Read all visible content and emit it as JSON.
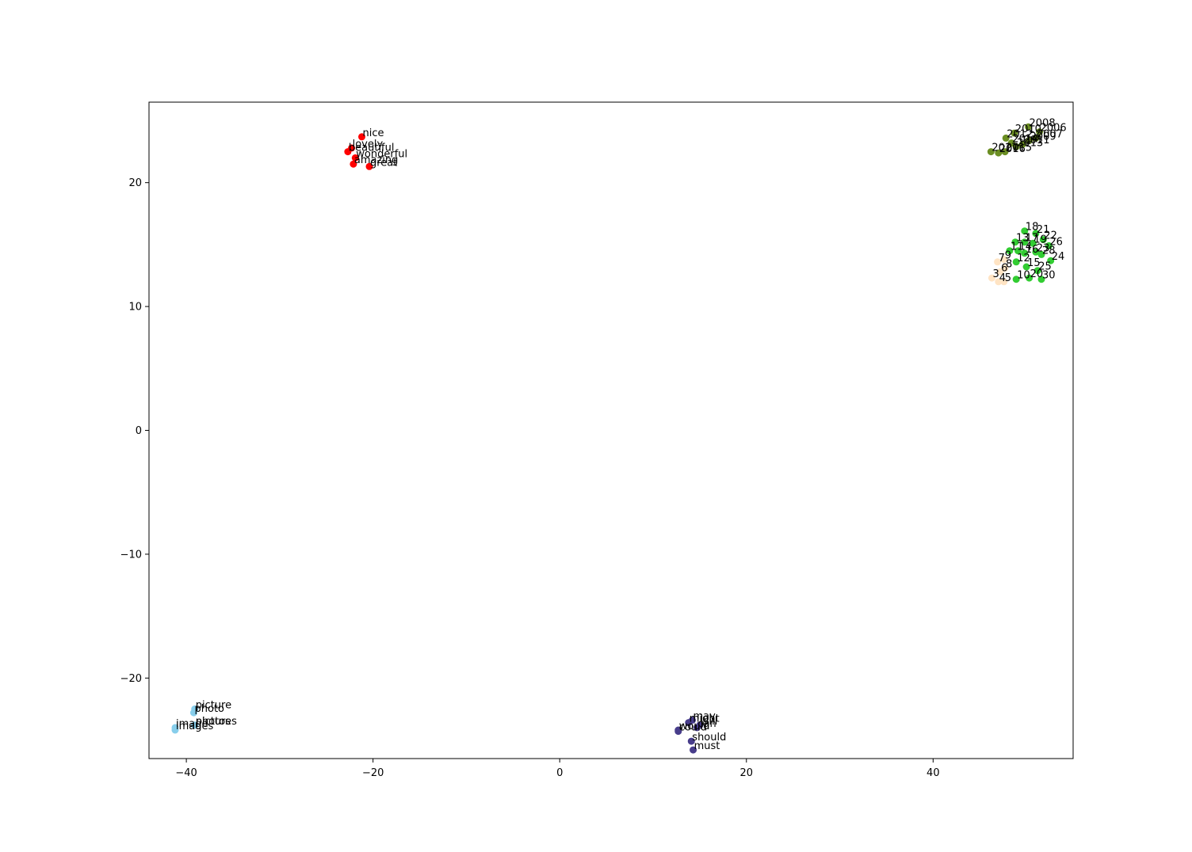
{
  "chart_data": {
    "type": "scatter",
    "title": "",
    "xlabel": "",
    "ylabel": "",
    "xlim": [
      -44,
      55
    ],
    "ylim": [
      -26.5,
      26.5
    ],
    "grid": false,
    "x_ticks": [
      -40,
      -20,
      0,
      20,
      40
    ],
    "y_ticks": [
      -20,
      -10,
      0,
      10,
      20
    ],
    "x_tick_labels": [
      "−40",
      "−20",
      "0",
      "20",
      "40"
    ],
    "y_tick_labels": [
      "−20",
      "−10",
      "0",
      "10",
      "20"
    ],
    "series": [
      {
        "color": "#ff0000",
        "points": [
          {
            "label": "nice",
            "x": -21.2,
            "y": 23.7
          },
          {
            "label": "lovely",
            "x": -22.3,
            "y": 22.8
          },
          {
            "label": "beautiful",
            "x": -22.7,
            "y": 22.5
          },
          {
            "label": "wonderful",
            "x": -21.9,
            "y": 22.0
          },
          {
            "label": "amazing",
            "x": -22.1,
            "y": 21.5
          },
          {
            "label": "great",
            "x": -20.4,
            "y": 21.3
          }
        ]
      },
      {
        "color": "#6b8e23",
        "points": [
          {
            "label": "2008",
            "x": 50.2,
            "y": 24.5
          },
          {
            "label": "2006",
            "x": 51.4,
            "y": 24.1
          },
          {
            "label": "2010",
            "x": 48.7,
            "y": 24.0
          },
          {
            "label": "2012",
            "x": 47.8,
            "y": 23.6
          },
          {
            "label": "2007",
            "x": 51.0,
            "y": 23.6
          },
          {
            "label": "2009",
            "x": 50.3,
            "y": 23.4
          },
          {
            "label": "2014",
            "x": 48.4,
            "y": 23.2
          },
          {
            "label": "2011",
            "x": 49.6,
            "y": 23.1
          },
          {
            "label": "2013",
            "x": 48.9,
            "y": 22.9
          },
          {
            "label": "2015",
            "x": 47.7,
            "y": 22.5
          },
          {
            "label": "2016",
            "x": 47.0,
            "y": 22.4
          },
          {
            "label": "2017",
            "x": 46.2,
            "y": 22.5
          }
        ]
      },
      {
        "color": "#32cd32",
        "points": [
          {
            "label": "18",
            "x": 49.8,
            "y": 16.1
          },
          {
            "label": "21",
            "x": 51.0,
            "y": 15.9
          },
          {
            "label": "22",
            "x": 51.8,
            "y": 15.4
          },
          {
            "label": "13",
            "x": 48.8,
            "y": 15.2
          },
          {
            "label": "17",
            "x": 49.8,
            "y": 15.2
          },
          {
            "label": "19",
            "x": 50.7,
            "y": 15.1
          },
          {
            "label": "26",
            "x": 52.4,
            "y": 14.9
          },
          {
            "label": "11",
            "x": 48.2,
            "y": 14.5
          },
          {
            "label": "14",
            "x": 49.1,
            "y": 14.5
          },
          {
            "label": "16",
            "x": 49.8,
            "y": 14.3
          },
          {
            "label": "23",
            "x": 51.0,
            "y": 14.4
          },
          {
            "label": "28",
            "x": 51.6,
            "y": 14.2
          },
          {
            "label": "24",
            "x": 52.6,
            "y": 13.7
          },
          {
            "label": "12",
            "x": 48.9,
            "y": 13.6
          },
          {
            "label": "15",
            "x": 50.0,
            "y": 13.2
          },
          {
            "label": "25",
            "x": 51.2,
            "y": 12.9
          },
          {
            "label": "10",
            "x": 48.9,
            "y": 12.2
          },
          {
            "label": "20",
            "x": 50.3,
            "y": 12.3
          },
          {
            "label": "30",
            "x": 51.6,
            "y": 12.2
          }
        ]
      },
      {
        "color": "#ffe4c4",
        "points": [
          {
            "label": "7",
            "x": 46.9,
            "y": 13.6
          },
          {
            "label": "9",
            "x": 47.6,
            "y": 13.8
          },
          {
            "label": "6",
            "x": 47.2,
            "y": 12.8
          },
          {
            "label": "8",
            "x": 47.7,
            "y": 13.1
          },
          {
            "label": "3",
            "x": 46.3,
            "y": 12.3
          },
          {
            "label": "4",
            "x": 47.0,
            "y": 12.0
          },
          {
            "label": "5",
            "x": 47.6,
            "y": 12.0
          }
        ]
      },
      {
        "color": "#87ceeb",
        "points": [
          {
            "label": "picture",
            "x": -39.1,
            "y": -22.5
          },
          {
            "label": "photo",
            "x": -39.2,
            "y": -22.8
          },
          {
            "label": "pictures",
            "x": -39.1,
            "y": -23.8
          },
          {
            "label": "photos",
            "x": -39.1,
            "y": -23.8
          },
          {
            "label": "images",
            "x": -41.2,
            "y": -24.2
          },
          {
            "label": "image",
            "x": -41.2,
            "y": -24.0
          }
        ]
      },
      {
        "color": "#483d8b",
        "points": [
          {
            "label": "may",
            "x": 14.2,
            "y": -23.4
          },
          {
            "label": "might",
            "x": 13.8,
            "y": -23.6
          },
          {
            "label": "can",
            "x": 14.7,
            "y": -24.0
          },
          {
            "label": "will",
            "x": 15.0,
            "y": -23.8
          },
          {
            "label": "would",
            "x": 12.7,
            "y": -24.2
          },
          {
            "label": "could",
            "x": 12.7,
            "y": -24.3
          },
          {
            "label": "should",
            "x": 14.1,
            "y": -25.1
          },
          {
            "label": "must",
            "x": 14.3,
            "y": -25.8
          }
        ]
      }
    ]
  }
}
